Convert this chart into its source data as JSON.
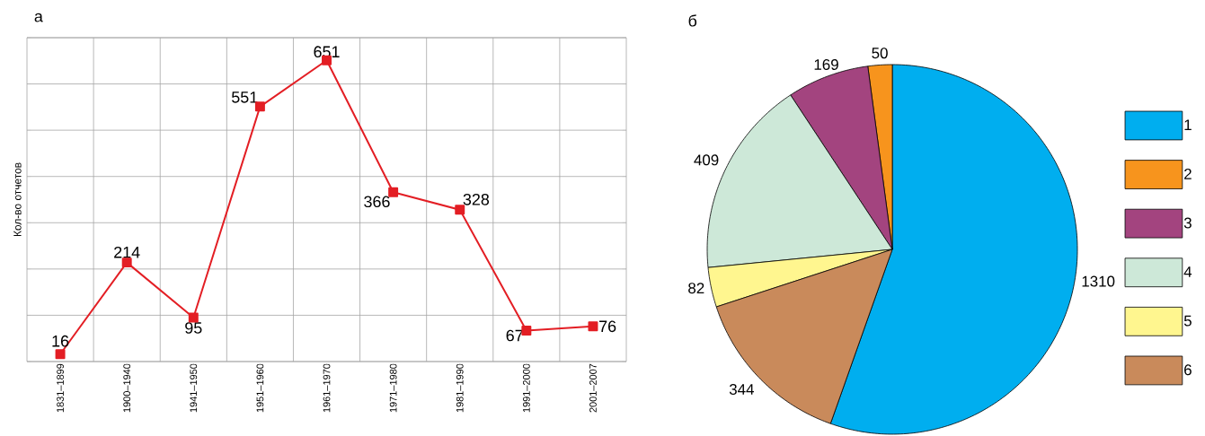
{
  "chart_data": [
    {
      "type": "line",
      "title": "а",
      "ylabel": "Кол-во отчетов",
      "categories": [
        "1831–1899",
        "1900–1940",
        "1941–1950",
        "1951–1960",
        "1961–1970",
        "1971–1980",
        "1981–1990",
        "1991–2000",
        "2001–2007"
      ],
      "values": [
        16,
        214,
        95,
        551,
        651,
        366,
        328,
        67,
        76
      ],
      "color": "#e31e24",
      "marker": "square",
      "ylim": [
        0,
        700
      ],
      "yticks": [
        {
          "value": 0,
          "label": null
        },
        {
          "value": 100,
          "label": null
        },
        {
          "value": 200,
          "label": null
        },
        {
          "value": 300,
          "label": null
        },
        {
          "value": 400,
          "label": null
        },
        {
          "value": 500,
          "label": null
        },
        {
          "value": 600,
          "label": null
        },
        {
          "value": 700,
          "label": null
        }
      ],
      "grid": true,
      "data_labels": true,
      "tick_labels": "x"
    },
    {
      "type": "pie",
      "title": "б",
      "categories": [
        "1",
        "2",
        "3",
        "4",
        "5",
        "6"
      ],
      "values": [
        1310,
        50,
        169,
        409,
        82,
        344
      ],
      "colors": [
        "#00aeef",
        "#f7941d",
        "#a3447f",
        "#cde8d8",
        "#fff68f",
        "#c98a5b"
      ],
      "data_labels": true,
      "legend": "right"
    }
  ]
}
